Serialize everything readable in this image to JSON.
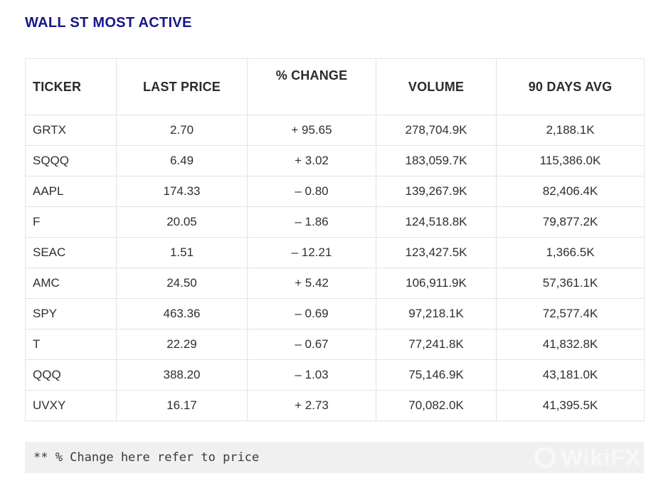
{
  "page": {
    "title": "WALL ST MOST ACTIVE"
  },
  "chart_data": {
    "type": "table",
    "title": "WALL ST MOST ACTIVE",
    "columns": [
      "TICKER",
      "LAST PRICE",
      "% CHANGE",
      "VOLUME",
      "90 DAYS AVG"
    ],
    "rows": [
      [
        "GRTX",
        "2.70",
        "+ 95.65",
        "278,704.9K",
        "2,188.1K"
      ],
      [
        "SQQQ",
        "6.49",
        "+ 3.02",
        "183,059.7K",
        "115,386.0K"
      ],
      [
        "AAPL",
        "174.33",
        "– 0.80",
        "139,267.9K",
        "82,406.4K"
      ],
      [
        "F",
        "20.05",
        "– 1.86",
        "124,518.8K",
        "79,877.2K"
      ],
      [
        "SEAC",
        "1.51",
        "– 12.21",
        "123,427.5K",
        "1,366.5K"
      ],
      [
        "AMC",
        "24.50",
        "+ 5.42",
        "106,911.9K",
        "57,361.1K"
      ],
      [
        "SPY",
        "463.36",
        "– 0.69",
        "97,218.1K",
        "72,577.4K"
      ],
      [
        "T",
        "22.29",
        "– 0.67",
        "77,241.8K",
        "41,832.8K"
      ],
      [
        "QQQ",
        "388.20",
        "– 1.03",
        "75,146.9K",
        "43,181.0K"
      ],
      [
        "UVXY",
        "16.17",
        "+ 2.73",
        "70,082.0K",
        "41,395.5K"
      ]
    ],
    "footnote": "** % Change here refer to price",
    "layout": {
      "grid": "full-borders",
      "ticker_align": "left",
      "numeric_align": "center"
    }
  },
  "footer": {
    "watermark": "WikiFX"
  },
  "colors": {
    "title": "#16168c",
    "header_text": "#2b2b2b",
    "body_text": "#2f2f2f",
    "border": "#e3e3e3",
    "footer_bg": "#f0f0f0",
    "footer_text": "#3a3a3a",
    "background": "#ffffff",
    "watermark": "#f8f8f8"
  }
}
